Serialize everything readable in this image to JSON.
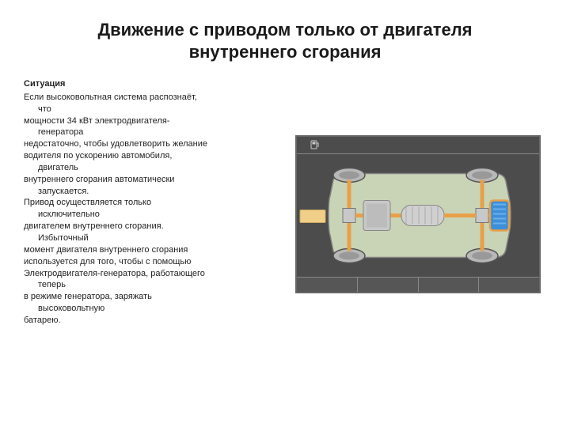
{
  "title": "Движение с приводом только от двигателя внутреннего сгорания",
  "situation": {
    "heading": "Ситуация",
    "lines": [
      {
        "t": "Если высоковольтная система распознаёт,",
        "i": 0
      },
      {
        "t": "что",
        "i": 1
      },
      {
        "t": "мощности 34 кВт электродвигателя-",
        "i": 0
      },
      {
        "t": "генератора",
        "i": 1
      },
      {
        "t": "недостаточно, чтобы удовлетворить желание",
        "i": 0
      },
      {
        "t": "водителя по ускорению автомобиля,",
        "i": 0
      },
      {
        "t": "двигатель",
        "i": 1
      },
      {
        "t": "внутреннего сгорания автоматически",
        "i": 0
      },
      {
        "t": "запускается.",
        "i": 1
      },
      {
        "t": "Привод осуществляется только",
        "i": 0
      },
      {
        "t": "исключительно",
        "i": 1
      },
      {
        "t": "двигателем внутреннего сгорания.",
        "i": 0
      },
      {
        "t": "Избыточный",
        "i": 1
      },
      {
        "t": "момент двигателя внутреннего сгорания",
        "i": 0
      },
      {
        "t": "используется для того, чтобы с помощью",
        "i": 0
      },
      {
        "t": "Электродвигателя-генератора, работающего",
        "i": 0
      },
      {
        "t": "теперь",
        "i": 1
      },
      {
        "t": "в режиме генератора, заряжать",
        "i": 0
      },
      {
        "t": "высоковольтную",
        "i": 1
      },
      {
        "t": "батарею.",
        "i": 0
      }
    ]
  },
  "diagram": {
    "background": "#4c4c4c",
    "frame_border": "#666666",
    "chassis_fill": "#d4e0c0",
    "chassis_stroke": "#888888",
    "axle_color": "#e8a048",
    "power_flow_color": "#e8a048",
    "wheel_fill": "#b8b8b8",
    "wheel_stroke": "#555555",
    "engine_fill": "#c8c8c8",
    "motor_fill": "#d0d0d0",
    "battery_fill": "#3d8fd8",
    "battery_stroke": "#e8a048",
    "engine_label_box": "#f0d088"
  }
}
